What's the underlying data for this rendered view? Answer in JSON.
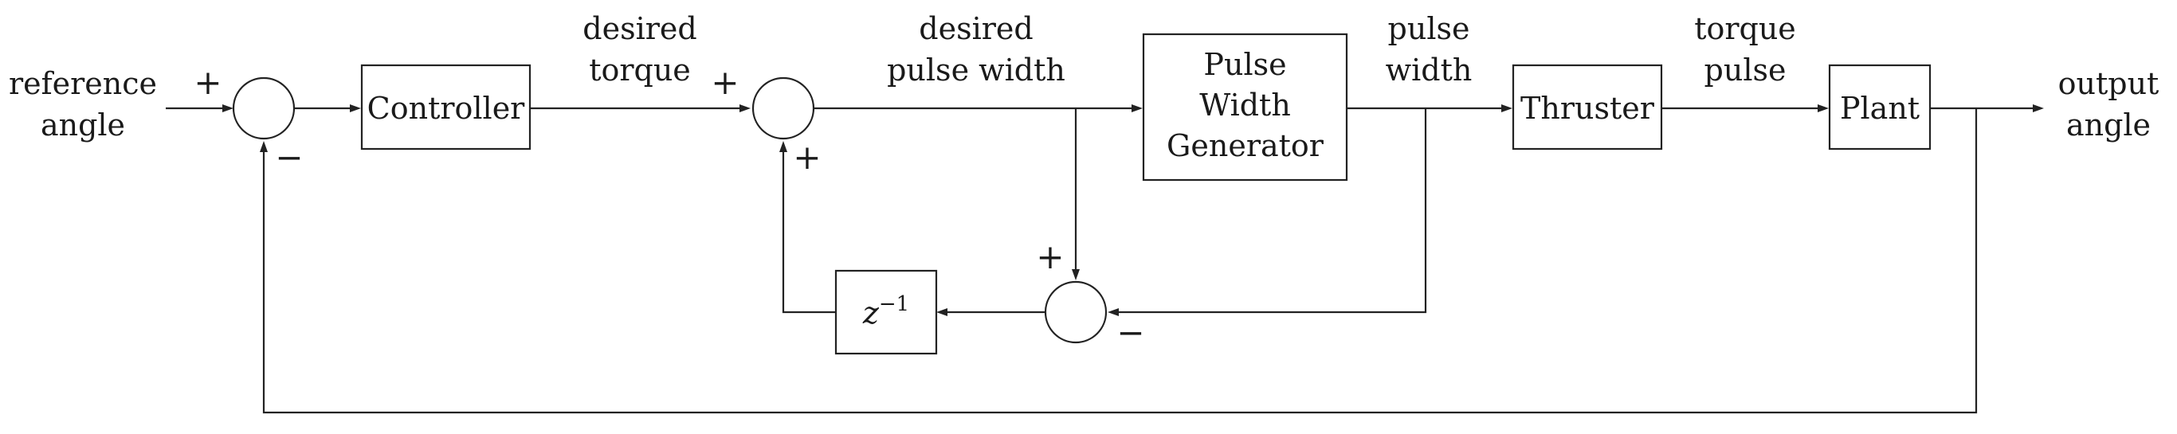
{
  "labels": {
    "input_l1": "reference",
    "input_l2": "angle",
    "output_l1": "output",
    "output_l2": "angle",
    "desired_torque_l1": "desired",
    "desired_torque_l2": "torque",
    "desired_pw_l1": "desired",
    "desired_pw_l2": "pulse width",
    "pulse_width_l1": "pulse",
    "pulse_width_l2": "width",
    "torque_pulse_l1": "torque",
    "torque_pulse_l2": "pulse"
  },
  "blocks": {
    "controller": "Controller",
    "pwg_l1": "Pulse",
    "pwg_l2": "Width",
    "pwg_l3": "Generator",
    "thruster": "Thruster",
    "plant": "Plant",
    "delay_base": "z",
    "delay_exp": "−1"
  },
  "signs": {
    "sum1_in": "+",
    "sum1_fb": "−",
    "sum2_in": "+",
    "sum2_fb": "+",
    "sum3_in": "+",
    "sum3_fb": "−"
  }
}
